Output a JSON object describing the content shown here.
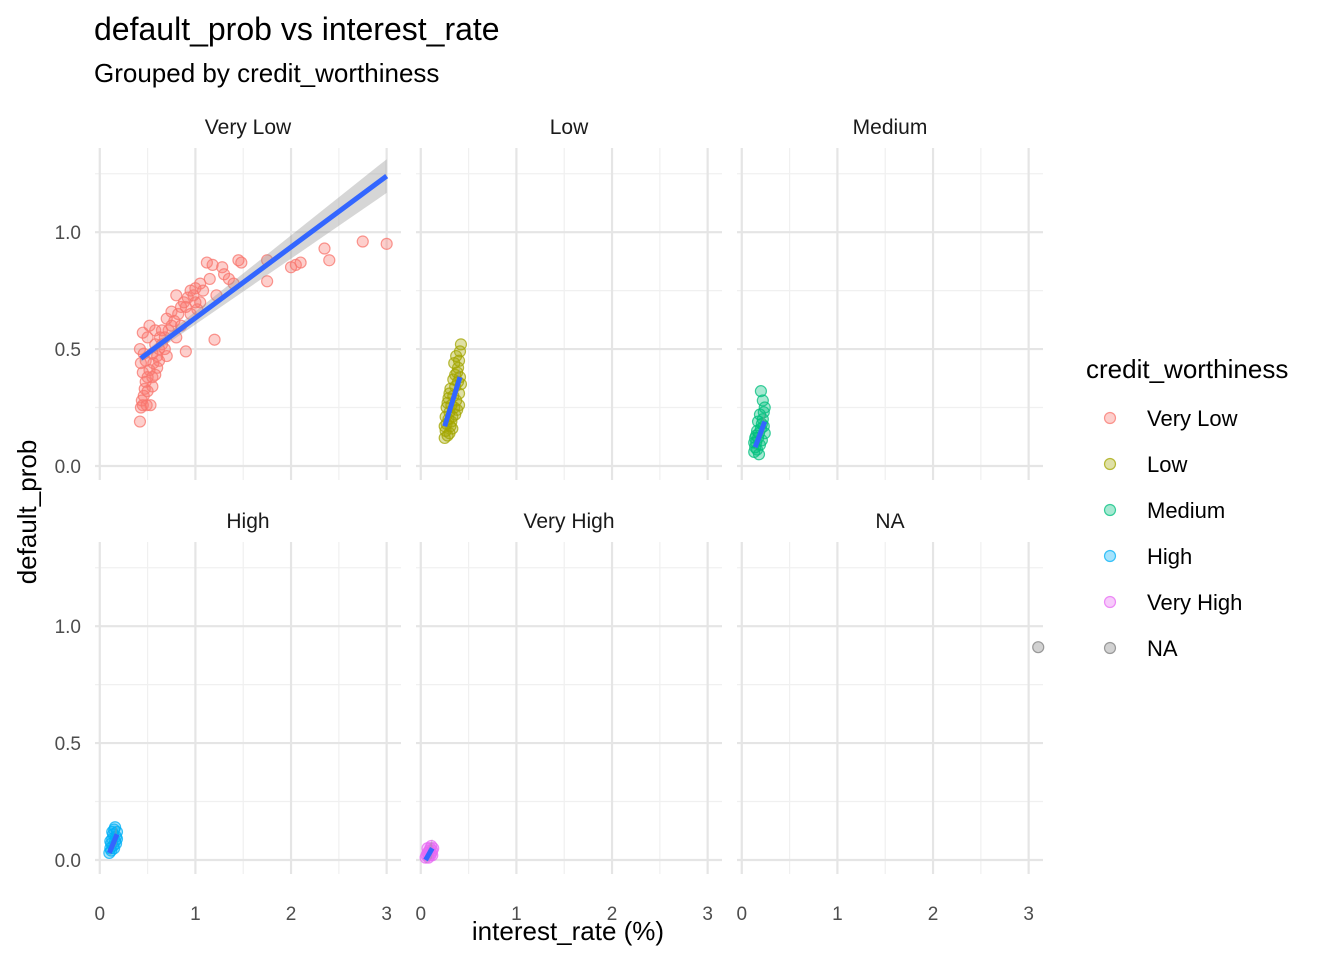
{
  "chart_data": {
    "type": "scatter",
    "title": "default_prob vs interest_rate",
    "subtitle": "Grouped by credit_worthiness",
    "xlabel": "interest_rate (%)",
    "ylabel": "default_prob",
    "xlim": [
      -0.05,
      3.15
    ],
    "ylim": [
      -0.06,
      1.36
    ],
    "x_ticks": [
      0,
      1,
      2,
      3
    ],
    "x_tick_labels": [
      "0",
      "1",
      "2",
      "3"
    ],
    "y_ticks": [
      0.0,
      0.5,
      1.0
    ],
    "y_tick_labels": [
      "0.0",
      "0.5",
      "1.0"
    ],
    "grid": true,
    "legend": {
      "title": "credit_worthiness",
      "position": "right"
    },
    "colors": {
      "Very Low": "#F8766D",
      "Low": "#A3A500",
      "Medium": "#00BF7D",
      "High": "#00B0F6",
      "Very High": "#E76BF3",
      "NA": "#7F7F7F",
      "trend": "#3366FF",
      "ribbon": "#999999"
    },
    "facets": [
      {
        "name": "Very Low",
        "points": [
          [
            0.42,
            0.19
          ],
          [
            0.43,
            0.25
          ],
          [
            0.44,
            0.28
          ],
          [
            0.45,
            0.26
          ],
          [
            0.46,
            0.3
          ],
          [
            0.47,
            0.33
          ],
          [
            0.48,
            0.36
          ],
          [
            0.49,
            0.26
          ],
          [
            0.5,
            0.38
          ],
          [
            0.52,
            0.41
          ],
          [
            0.53,
            0.26
          ],
          [
            0.55,
            0.34
          ],
          [
            0.56,
            0.44
          ],
          [
            0.58,
            0.39
          ],
          [
            0.6,
            0.47
          ],
          [
            0.62,
            0.5
          ],
          [
            0.65,
            0.52
          ],
          [
            0.68,
            0.55
          ],
          [
            0.7,
            0.47
          ],
          [
            0.72,
            0.58
          ],
          [
            0.75,
            0.6
          ],
          [
            0.78,
            0.62
          ],
          [
            0.8,
            0.55
          ],
          [
            0.82,
            0.65
          ],
          [
            0.85,
            0.68
          ],
          [
            0.88,
            0.7
          ],
          [
            0.9,
            0.49
          ],
          [
            0.92,
            0.72
          ],
          [
            0.95,
            0.75
          ],
          [
            0.98,
            0.73
          ],
          [
            1.0,
            0.7
          ],
          [
            1.02,
            0.67
          ],
          [
            1.05,
            0.78
          ],
          [
            1.08,
            0.75
          ],
          [
            1.12,
            0.87
          ],
          [
            1.15,
            0.8
          ],
          [
            1.18,
            0.86
          ],
          [
            1.2,
            0.54
          ],
          [
            1.22,
            0.73
          ],
          [
            1.28,
            0.85
          ],
          [
            1.3,
            0.82
          ],
          [
            1.35,
            0.8
          ],
          [
            1.4,
            0.78
          ],
          [
            1.45,
            0.88
          ],
          [
            1.48,
            0.87
          ],
          [
            1.75,
            0.88
          ],
          [
            1.75,
            0.79
          ],
          [
            2.0,
            0.85
          ],
          [
            2.05,
            0.86
          ],
          [
            2.1,
            0.87
          ],
          [
            2.35,
            0.93
          ],
          [
            2.4,
            0.88
          ],
          [
            2.75,
            0.96
          ],
          [
            3.0,
            0.95
          ],
          [
            0.45,
            0.4
          ],
          [
            0.48,
            0.45
          ],
          [
            0.55,
            0.48
          ],
          [
            0.6,
            0.42
          ],
          [
            0.65,
            0.58
          ],
          [
            0.7,
            0.63
          ],
          [
            0.75,
            0.66
          ],
          [
            0.85,
            0.6
          ],
          [
            0.95,
            0.65
          ],
          [
            1.05,
            0.7
          ],
          [
            0.5,
            0.55
          ],
          [
            0.58,
            0.52
          ],
          [
            0.62,
            0.45
          ],
          [
            0.68,
            0.5
          ],
          [
            0.42,
            0.5
          ],
          [
            0.45,
            0.57
          ],
          [
            0.52,
            0.6
          ],
          [
            0.8,
            0.73
          ],
          [
            0.9,
            0.68
          ],
          [
            1.0,
            0.76
          ],
          [
            0.43,
            0.44
          ],
          [
            0.46,
            0.48
          ],
          [
            0.5,
            0.32
          ],
          [
            0.55,
            0.38
          ],
          [
            0.58,
            0.58
          ],
          [
            0.63,
            0.55
          ]
        ],
        "trend": {
          "x": [
            0.43,
            3.0
          ],
          "y": [
            0.46,
            1.24
          ]
        }
      },
      {
        "name": "Low",
        "points": [
          [
            0.25,
            0.12
          ],
          [
            0.26,
            0.15
          ],
          [
            0.27,
            0.18
          ],
          [
            0.28,
            0.13
          ],
          [
            0.29,
            0.2
          ],
          [
            0.3,
            0.23
          ],
          [
            0.31,
            0.17
          ],
          [
            0.32,
            0.26
          ],
          [
            0.33,
            0.21
          ],
          [
            0.34,
            0.3
          ],
          [
            0.35,
            0.25
          ],
          [
            0.36,
            0.34
          ],
          [
            0.37,
            0.28
          ],
          [
            0.38,
            0.4
          ],
          [
            0.39,
            0.36
          ],
          [
            0.4,
            0.45
          ],
          [
            0.41,
            0.49
          ],
          [
            0.42,
            0.52
          ],
          [
            0.3,
            0.14
          ],
          [
            0.33,
            0.16
          ],
          [
            0.36,
            0.22
          ],
          [
            0.38,
            0.24
          ],
          [
            0.4,
            0.31
          ],
          [
            0.41,
            0.38
          ],
          [
            0.27,
            0.25
          ],
          [
            0.29,
            0.29
          ],
          [
            0.31,
            0.33
          ],
          [
            0.35,
            0.44
          ],
          [
            0.37,
            0.47
          ],
          [
            0.26,
            0.21
          ],
          [
            0.28,
            0.27
          ],
          [
            0.32,
            0.19
          ],
          [
            0.34,
            0.37
          ],
          [
            0.39,
            0.42
          ],
          [
            0.42,
            0.35
          ],
          [
            0.25,
            0.17
          ],
          [
            0.3,
            0.31
          ],
          [
            0.36,
            0.39
          ],
          [
            0.4,
            0.26
          ]
        ],
        "trend": {
          "x": [
            0.25,
            0.41
          ],
          "y": [
            0.17,
            0.38
          ]
        }
      },
      {
        "name": "Medium",
        "points": [
          [
            0.13,
            0.06
          ],
          [
            0.14,
            0.08
          ],
          [
            0.15,
            0.1
          ],
          [
            0.16,
            0.07
          ],
          [
            0.17,
            0.12
          ],
          [
            0.18,
            0.14
          ],
          [
            0.19,
            0.09
          ],
          [
            0.2,
            0.16
          ],
          [
            0.21,
            0.18
          ],
          [
            0.22,
            0.2
          ],
          [
            0.23,
            0.23
          ],
          [
            0.24,
            0.25
          ],
          [
            0.2,
            0.32
          ],
          [
            0.22,
            0.28
          ],
          [
            0.15,
            0.13
          ],
          [
            0.16,
            0.15
          ],
          [
            0.18,
            0.05
          ],
          [
            0.21,
            0.11
          ],
          [
            0.23,
            0.17
          ],
          [
            0.24,
            0.14
          ],
          [
            0.14,
            0.12
          ],
          [
            0.17,
            0.19
          ],
          [
            0.19,
            0.22
          ],
          [
            0.13,
            0.1
          ]
        ],
        "trend": {
          "x": [
            0.14,
            0.24
          ],
          "y": [
            0.08,
            0.19
          ]
        }
      },
      {
        "name": "High",
        "points": [
          [
            0.1,
            0.03
          ],
          [
            0.11,
            0.05
          ],
          [
            0.12,
            0.07
          ],
          [
            0.13,
            0.09
          ],
          [
            0.14,
            0.11
          ],
          [
            0.15,
            0.13
          ],
          [
            0.16,
            0.14
          ],
          [
            0.17,
            0.1
          ],
          [
            0.18,
            0.12
          ],
          [
            0.12,
            0.04
          ],
          [
            0.14,
            0.06
          ],
          [
            0.16,
            0.08
          ],
          [
            0.11,
            0.08
          ],
          [
            0.13,
            0.12
          ],
          [
            0.15,
            0.05
          ],
          [
            0.17,
            0.07
          ],
          [
            0.18,
            0.09
          ]
        ],
        "trend": {
          "x": [
            0.1,
            0.18
          ],
          "y": [
            0.03,
            0.11
          ]
        }
      },
      {
        "name": "Very High",
        "points": [
          [
            0.05,
            0.01
          ],
          [
            0.06,
            0.02
          ],
          [
            0.07,
            0.03
          ],
          [
            0.08,
            0.02
          ],
          [
            0.09,
            0.04
          ],
          [
            0.1,
            0.05
          ],
          [
            0.11,
            0.03
          ],
          [
            0.12,
            0.04
          ],
          [
            0.13,
            0.05
          ],
          [
            0.08,
            0.01
          ],
          [
            0.1,
            0.02
          ],
          [
            0.12,
            0.02
          ],
          [
            0.07,
            0.05
          ],
          [
            0.11,
            0.06
          ]
        ],
        "trend": {
          "x": [
            0.05,
            0.12
          ],
          "y": [
            0.0,
            0.05
          ]
        }
      },
      {
        "name": "NA",
        "points": [
          [
            3.1,
            0.91
          ]
        ],
        "trend": null
      }
    ]
  }
}
